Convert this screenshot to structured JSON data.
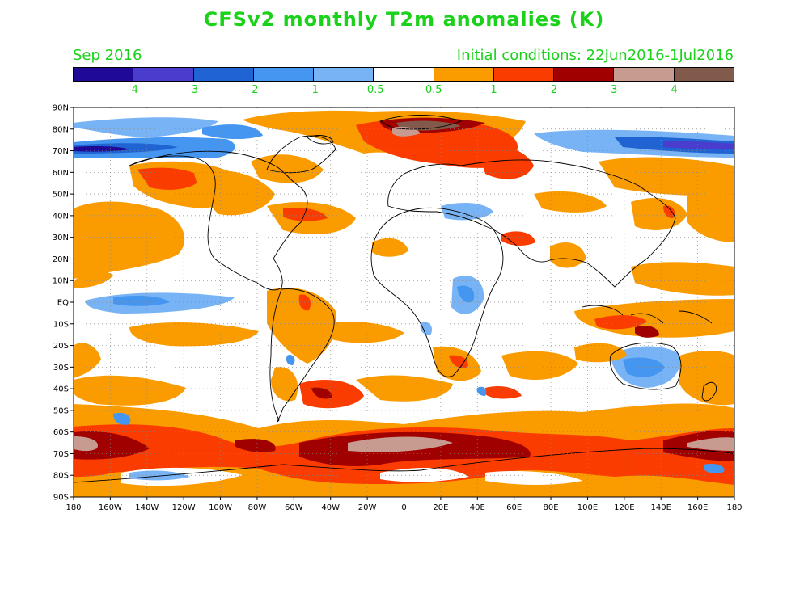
{
  "title": "CFSv2 monthly T2m anomalies (K)",
  "month_label": "Sep 2016",
  "init_label": "Initial conditions: 22Jun2016-1Jul2016",
  "colorbar": {
    "colors": [
      "#1e0a96",
      "#4a3ccc",
      "#1f64d2",
      "#4496f0",
      "#78b4f5",
      "#ffffff",
      "#fa9b00",
      "#fa3c00",
      "#a00000",
      "#c89b91",
      "#825a4b"
    ],
    "labels": [
      "-4",
      "-3",
      "-2",
      "-1",
      "-0.5",
      "0.5",
      "1",
      "2",
      "3",
      "4"
    ]
  },
  "map": {
    "lat_ticks": [
      "90N",
      "80N",
      "70N",
      "60N",
      "50N",
      "40N",
      "30N",
      "20N",
      "10N",
      "EQ",
      "10S",
      "20S",
      "30S",
      "40S",
      "50S",
      "60S",
      "70S",
      "80S",
      "90S"
    ],
    "lon_ticks": [
      "180",
      "160W",
      "140W",
      "120W",
      "100W",
      "80W",
      "60W",
      "40W",
      "20W",
      "0",
      "20E",
      "40E",
      "60E",
      "80E",
      "100E",
      "120E",
      "140E",
      "160E",
      "180"
    ]
  }
}
